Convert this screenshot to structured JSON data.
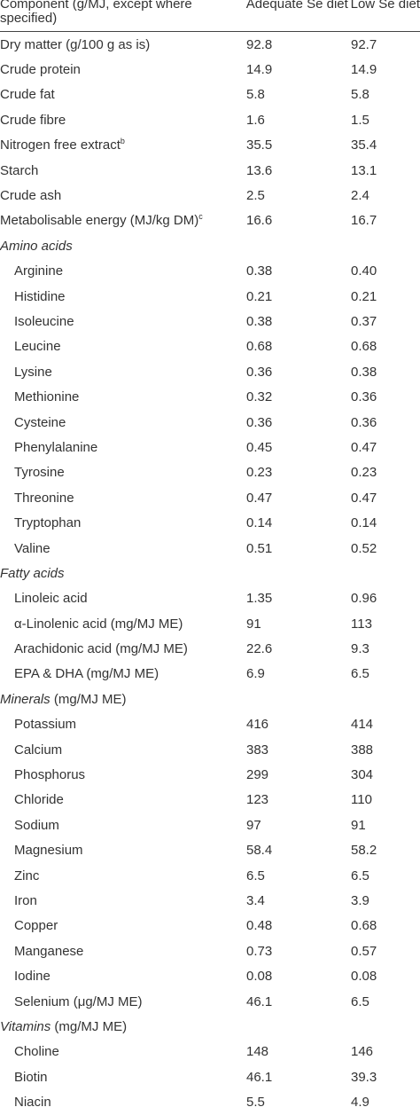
{
  "header": {
    "component": "Component (g/MJ, except where specified)",
    "adequate": "Adequate Se diet",
    "low": "Low Se diet"
  },
  "rows": [
    {
      "label": "Dry matter (g/100 g as is)",
      "adequate": "92.8",
      "low": "92.7"
    },
    {
      "label": "Crude protein",
      "adequate": "14.9",
      "low": "14.9"
    },
    {
      "label": "Crude fat",
      "adequate": "5.8",
      "low": "5.8"
    },
    {
      "label": "Crude fibre",
      "adequate": "1.6",
      "low": "1.5"
    },
    {
      "label": "Nitrogen free extract",
      "sup": "b",
      "adequate": "35.5",
      "low": "35.4"
    },
    {
      "label": "Starch",
      "adequate": "13.6",
      "low": "13.1"
    },
    {
      "label": "Crude ash",
      "adequate": "2.5",
      "low": "2.4"
    },
    {
      "label": "Metabolisable energy (MJ/kg DM)",
      "sup": "c",
      "adequate": "16.6",
      "low": "16.7"
    }
  ],
  "amino_acids": {
    "title": "Amino acids",
    "items": [
      {
        "label": "Arginine",
        "adequate": "0.38",
        "low": "0.40"
      },
      {
        "label": "Histidine",
        "adequate": "0.21",
        "low": "0.21"
      },
      {
        "label": "Isoleucine",
        "adequate": "0.38",
        "low": "0.37"
      },
      {
        "label": "Leucine",
        "adequate": "0.68",
        "low": "0.68"
      },
      {
        "label": "Lysine",
        "adequate": "0.36",
        "low": "0.38"
      },
      {
        "label": "Methionine",
        "adequate": "0.32",
        "low": "0.36"
      },
      {
        "label": "Cysteine",
        "adequate": "0.36",
        "low": "0.36"
      },
      {
        "label": "Phenylalanine",
        "adequate": "0.45",
        "low": "0.47"
      },
      {
        "label": "Tyrosine",
        "adequate": "0.23",
        "low": "0.23"
      },
      {
        "label": "Threonine",
        "adequate": "0.47",
        "low": "0.47"
      },
      {
        "label": "Tryptophan",
        "adequate": "0.14",
        "low": "0.14"
      },
      {
        "label": "Valine",
        "adequate": "0.51",
        "low": "0.52"
      }
    ]
  },
  "fatty_acids": {
    "title": "Fatty acids",
    "items": [
      {
        "label": "Linoleic acid",
        "adequate": "1.35",
        "low": "0.96"
      },
      {
        "label": "α-Linolenic acid (mg/MJ ME)",
        "adequate": "91",
        "low": "113"
      },
      {
        "label": "Arachidonic acid (mg/MJ ME)",
        "adequate": "22.6",
        "low": "9.3"
      },
      {
        "label": "EPA & DHA (mg/MJ ME)",
        "adequate": "6.9",
        "low": "6.5"
      }
    ]
  },
  "minerals": {
    "title": "Minerals",
    "unit": " (mg/MJ ME)",
    "items": [
      {
        "label": "Potassium",
        "adequate": "416",
        "low": "414"
      },
      {
        "label": "Calcium",
        "adequate": "383",
        "low": "388"
      },
      {
        "label": "Phosphorus",
        "adequate": "299",
        "low": "304"
      },
      {
        "label": "Chloride",
        "adequate": "123",
        "low": "110"
      },
      {
        "label": "Sodium",
        "adequate": "97",
        "low": "91"
      },
      {
        "label": "Magnesium",
        "adequate": "58.4",
        "low": "58.2"
      },
      {
        "label": "Zinc",
        "adequate": "6.5",
        "low": "6.5"
      },
      {
        "label": "Iron",
        "adequate": "3.4",
        "low": "3.9"
      },
      {
        "label": "Copper",
        "adequate": "0.48",
        "low": "0.68"
      },
      {
        "label": "Manganese",
        "adequate": "0.73",
        "low": "0.57"
      },
      {
        "label": "Iodine",
        "adequate": "0.08",
        "low": "0.08"
      },
      {
        "label": "Selenium (μg/MJ ME)",
        "adequate": "46.1",
        "low": "6.5"
      }
    ]
  },
  "vitamins": {
    "title": "Vitamins",
    "unit": " (mg/MJ ME)",
    "items": [
      {
        "label": "Choline",
        "adequate": "148",
        "low": "146"
      },
      {
        "label": "Biotin",
        "adequate": "46.1",
        "low": "39.3"
      },
      {
        "label": "Niacin",
        "adequate": "5.5",
        "low": "4.9"
      }
    ]
  }
}
